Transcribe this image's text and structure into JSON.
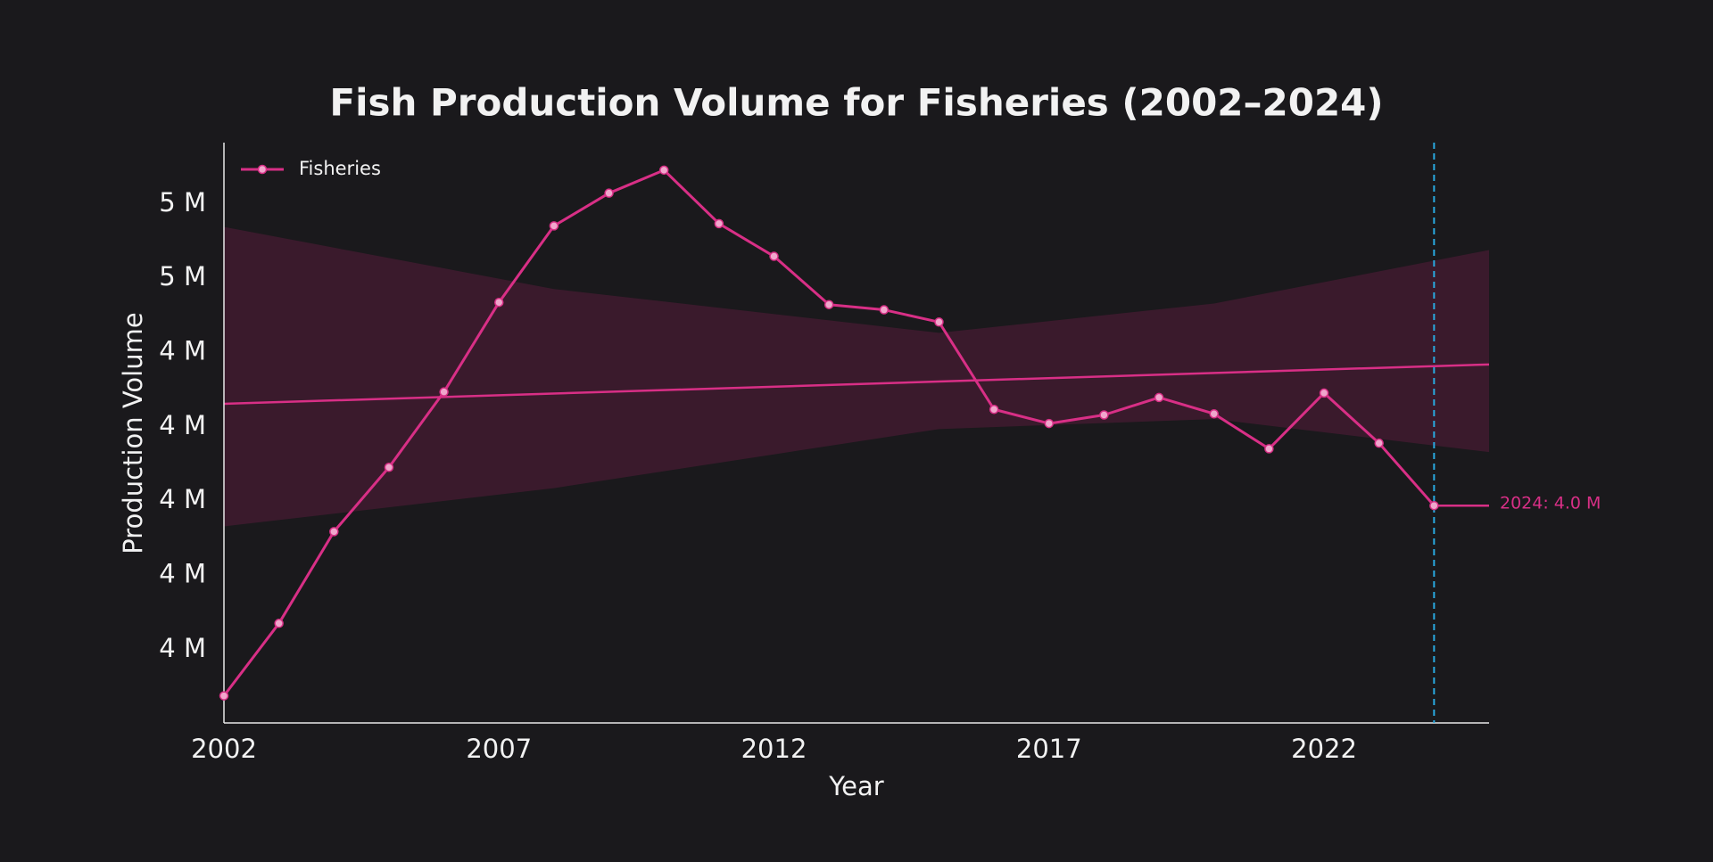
{
  "chart_data": {
    "type": "line",
    "title": "Fish Production Volume for Fisheries (2002–2024)",
    "x_label": "Year",
    "y_label": "Production Volume",
    "x": [
      2002,
      2003,
      2004,
      2005,
      2006,
      2007,
      2008,
      2009,
      2010,
      2011,
      2012,
      2013,
      2014,
      2015,
      2016,
      2017,
      2018,
      2019,
      2020,
      2021,
      2022,
      2023,
      2024
    ],
    "series": [
      {
        "name": "Fisheries",
        "color": "#d82f86",
        "values": [
          3.476,
          3.671,
          3.918,
          4.091,
          4.294,
          4.535,
          4.741,
          4.829,
          4.891,
          4.747,
          4.659,
          4.529,
          4.515,
          4.482,
          4.247,
          4.209,
          4.232,
          4.279,
          4.235,
          4.141,
          4.291,
          4.156,
          3.988
        ]
      }
    ],
    "trend": {
      "x": [
        2002,
        2025
      ],
      "values": [
        4.262,
        4.368
      ],
      "color": "#d82f86"
    },
    "band": {
      "x": [
        2002,
        2008,
        2015,
        2020,
        2025
      ],
      "lower": [
        3.932,
        4.035,
        4.194,
        4.221,
        4.132
      ],
      "upper": [
        4.738,
        4.571,
        4.453,
        4.532,
        4.676
      ],
      "color": "#3a1a2c"
    },
    "marker_line": {
      "x": 2024,
      "color": "#29a9e0"
    },
    "annotation": "2024: 4.0 M",
    "xlim": [
      2002,
      2025
    ],
    "ylim": [
      3.403,
      4.965
    ],
    "xticks": [
      2002,
      2007,
      2012,
      2017,
      2022
    ],
    "yticks": [
      {
        "value": 3.6,
        "label": "4 M"
      },
      {
        "value": 3.8,
        "label": "4 M"
      },
      {
        "value": 4.0,
        "label": "4 M"
      },
      {
        "value": 4.2,
        "label": "4 M"
      },
      {
        "value": 4.4,
        "label": "4 M"
      },
      {
        "value": 4.6,
        "label": "5 M"
      },
      {
        "value": 4.8,
        "label": "5 M"
      }
    ],
    "grid": false,
    "legend": "upper-left"
  }
}
